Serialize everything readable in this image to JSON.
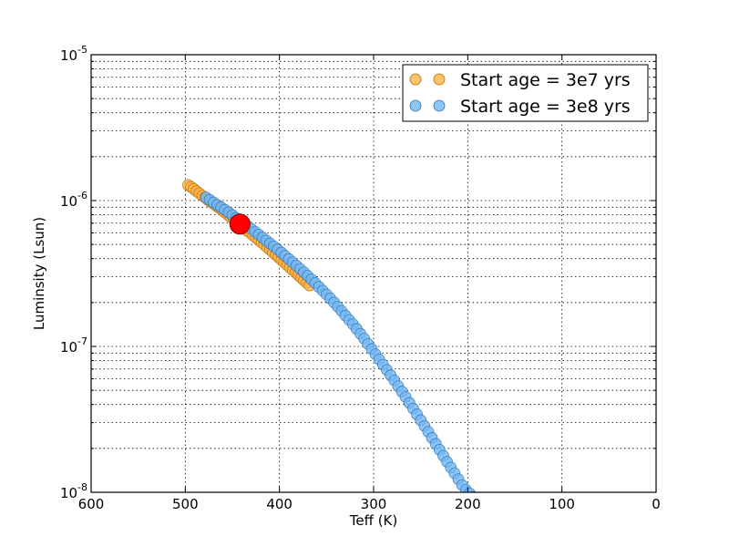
{
  "chart_data": {
    "type": "scatter",
    "xlabel": "Teff (K)",
    "ylabel": "Luminsity (Lsun)",
    "xlim": [
      600,
      0
    ],
    "ylim": [
      1e-08,
      1e-05
    ],
    "yscale": "log",
    "grid": true,
    "legend_position": "top-right",
    "x_ticks": [
      600,
      500,
      400,
      300,
      200,
      100,
      0
    ],
    "x_tick_labels": [
      "600",
      "500",
      "400",
      "300",
      "200",
      "100",
      "0"
    ],
    "y_ticks": [
      1e-08,
      1e-07,
      1e-06,
      1e-05
    ],
    "y_tick_labels": [
      {
        "base": "10",
        "exp": "-8"
      },
      {
        "base": "10",
        "exp": "-7"
      },
      {
        "base": "10",
        "exp": "-6"
      },
      {
        "base": "10",
        "exp": "-5"
      }
    ],
    "series": [
      {
        "name": "Start age = 3e7 yrs",
        "color": "#ffb347",
        "edge": "#b36b00",
        "x": [
          497,
          494,
          491,
          488,
          485,
          482,
          479,
          476,
          473,
          470,
          467,
          464,
          461,
          458,
          455,
          452,
          449,
          446,
          443,
          440,
          437,
          434,
          431,
          428,
          425,
          422,
          419,
          416,
          413,
          410,
          407,
          404,
          401,
          398,
          395,
          392,
          389,
          386,
          383,
          380,
          377,
          374,
          371,
          368
        ],
        "y": [
          1.28e-06,
          1.24e-06,
          1.2e-06,
          1.16e-06,
          1.12e-06,
          1.08e-06,
          1.05e-06,
          1.01e-06,
          9.8e-07,
          9.5e-07,
          9.2e-07,
          8.9e-07,
          8.6e-07,
          8.3e-07,
          8e-07,
          7.7e-07,
          7.45e-07,
          7.2e-07,
          6.95e-07,
          6.7e-07,
          6.45e-07,
          6.2e-07,
          6e-07,
          5.78e-07,
          5.56e-07,
          5.36e-07,
          5.16e-07,
          4.97e-07,
          4.78e-07,
          4.6e-07,
          4.42e-07,
          4.25e-07,
          4.08e-07,
          3.92e-07,
          3.77e-07,
          3.62e-07,
          3.48e-07,
          3.34e-07,
          3.21e-07,
          3.08e-07,
          2.96e-07,
          2.84e-07,
          2.73e-07,
          2.62e-07
        ]
      },
      {
        "name": "Start age = 3e8 yrs",
        "color": "#73b7f2",
        "edge": "#2a6fb3",
        "x": [
          478,
          474,
          470,
          466,
          462,
          458,
          454,
          450,
          446,
          442,
          438,
          434,
          430,
          426,
          422,
          418,
          414,
          410,
          406,
          402,
          398,
          394,
          390,
          386,
          382,
          378,
          374,
          370,
          366,
          362,
          358,
          354,
          350,
          346,
          342,
          338,
          334,
          330,
          326,
          322,
          318,
          314,
          310,
          306,
          302,
          298,
          294,
          290,
          286,
          282,
          278,
          274,
          270,
          266,
          262,
          258,
          254,
          250,
          246,
          242,
          238,
          234,
          230,
          226,
          222,
          218,
          214,
          210,
          206,
          202,
          198,
          194,
          190,
          186,
          182,
          178,
          174
        ],
        "y": [
          1.05e-06,
          1.01e-06,
          9.7e-07,
          9.35e-07,
          9e-07,
          8.65e-07,
          8.3e-07,
          7.95e-07,
          7.6e-07,
          7.3e-07,
          7e-07,
          6.7e-07,
          6.4e-07,
          6.12e-07,
          5.85e-07,
          5.58e-07,
          5.32e-07,
          5.08e-07,
          4.85e-07,
          4.62e-07,
          4.4e-07,
          4.18e-07,
          3.97e-07,
          3.77e-07,
          3.58e-07,
          3.4e-07,
          3.22e-07,
          3.05e-07,
          2.88e-07,
          2.72e-07,
          2.56e-07,
          2.41e-07,
          2.27e-07,
          2.13e-07,
          2e-07,
          1.87e-07,
          1.75e-07,
          1.63e-07,
          1.52e-07,
          1.42e-07,
          1.32e-07,
          1.22e-07,
          1.13e-07,
          1.04e-07,
          9.6e-08,
          8.85e-08,
          8.15e-08,
          7.5e-08,
          6.9e-08,
          6.35e-08,
          5.85e-08,
          5.35e-08,
          4.9e-08,
          4.5e-08,
          4.1e-08,
          3.75e-08,
          3.42e-08,
          3.12e-08,
          2.85e-08,
          2.6e-08,
          2.36e-08,
          2.15e-08,
          1.96e-08,
          1.78e-08,
          1.62e-08,
          1.48e-08,
          1.35e-08,
          1.23e-08,
          1.12e-08,
          1.04e-08,
          9.8e-09,
          9.3e-09,
          8.9e-09,
          8.6e-09,
          8.3e-09,
          8.1e-09,
          8e-09
        ]
      }
    ],
    "highlight_point": {
      "x": 442,
      "y": 6.9e-07,
      "color": "#ff0000",
      "edge": "#8b0000"
    }
  }
}
